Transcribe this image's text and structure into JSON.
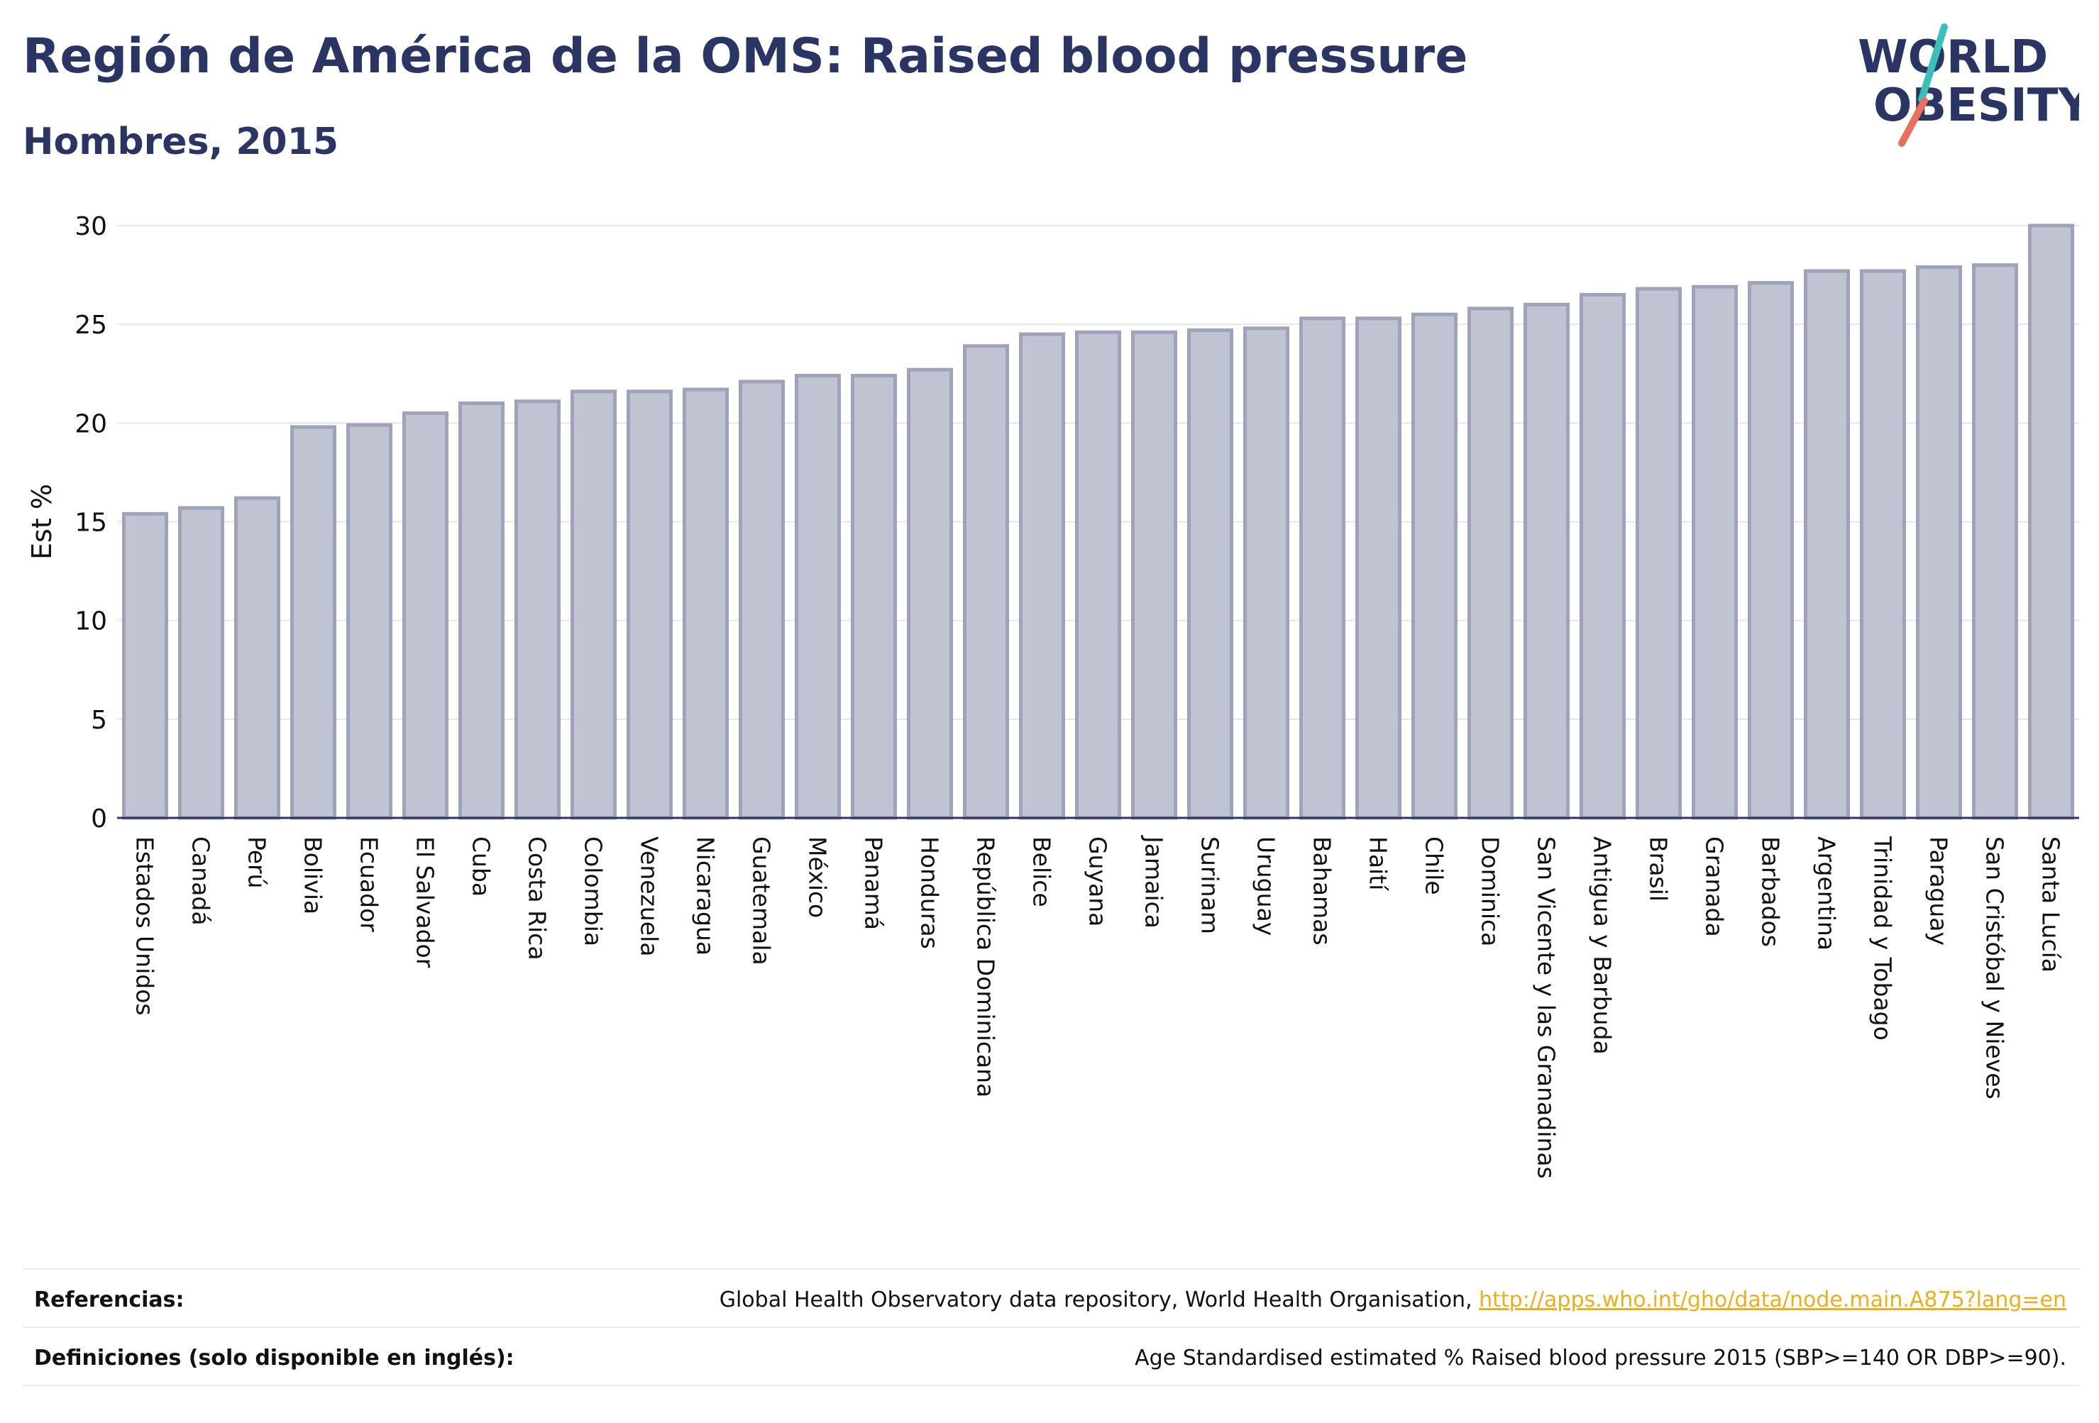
{
  "header": {
    "title": "Región de América de la OMS: Raised blood pressure",
    "subtitle": "Hombres, 2015"
  },
  "logo": {
    "line1": "WORLD",
    "line2": "OBESITY"
  },
  "colors": {
    "title": "#2b3563",
    "bar_fill": "#c0c3d1",
    "bar_stroke": "#9ea3bb",
    "axis": "#2b3563",
    "grid": "#e6e6ea",
    "link": "#e8b020",
    "logo_teal": "#3bbfb8",
    "logo_coral": "#e8705f"
  },
  "chart_data": {
    "type": "bar",
    "title": "Región de América de la OMS: Raised blood pressure",
    "subtitle": "Hombres, 2015",
    "xlabel": "",
    "ylabel": "Est %",
    "ylim": [
      0,
      30
    ],
    "yticks": [
      0,
      5,
      10,
      15,
      20,
      25,
      30
    ],
    "grid": true,
    "legend": "none",
    "categories": [
      "Estados Unidos",
      "Canadá",
      "Perú",
      "Bolivia",
      "Ecuador",
      "El Salvador",
      "Cuba",
      "Costa Rica",
      "Colombia",
      "Venezuela",
      "Nicaragua",
      "Guatemala",
      "México",
      "Panamá",
      "Honduras",
      "República Dominicana",
      "Belice",
      "Guyana",
      "Jamaica",
      "Surinam",
      "Uruguay",
      "Bahamas",
      "Haití",
      "Chile",
      "Dominica",
      "San Vicente y las Granadinas",
      "Antigua y Barbuda",
      "Brasil",
      "Granada",
      "Barbados",
      "Argentina",
      "Trinidad y Tobago",
      "Paraguay",
      "San Cristóbal y Nieves",
      "Santa Lucía"
    ],
    "values": [
      15.4,
      15.7,
      16.2,
      19.8,
      19.9,
      20.5,
      21.0,
      21.1,
      21.6,
      21.6,
      21.7,
      22.1,
      22.4,
      22.4,
      22.7,
      23.9,
      24.5,
      24.6,
      24.6,
      24.7,
      24.8,
      25.3,
      25.3,
      25.5,
      25.8,
      26.0,
      26.5,
      26.8,
      26.9,
      27.1,
      27.7,
      27.7,
      27.9,
      28.0,
      30.0
    ]
  },
  "footer": {
    "references_label": "Referencias:",
    "references_text": "Global Health Observatory data repository, World Health Organisation, ",
    "references_link": "http://apps.who.int/gho/data/node.main.A875?lang=en",
    "definitions_label": "Definiciones (solo disponible en inglés):",
    "definitions_text": "Age Standardised estimated % Raised blood pressure 2015 (SBP>=140 OR DBP>=90)."
  }
}
